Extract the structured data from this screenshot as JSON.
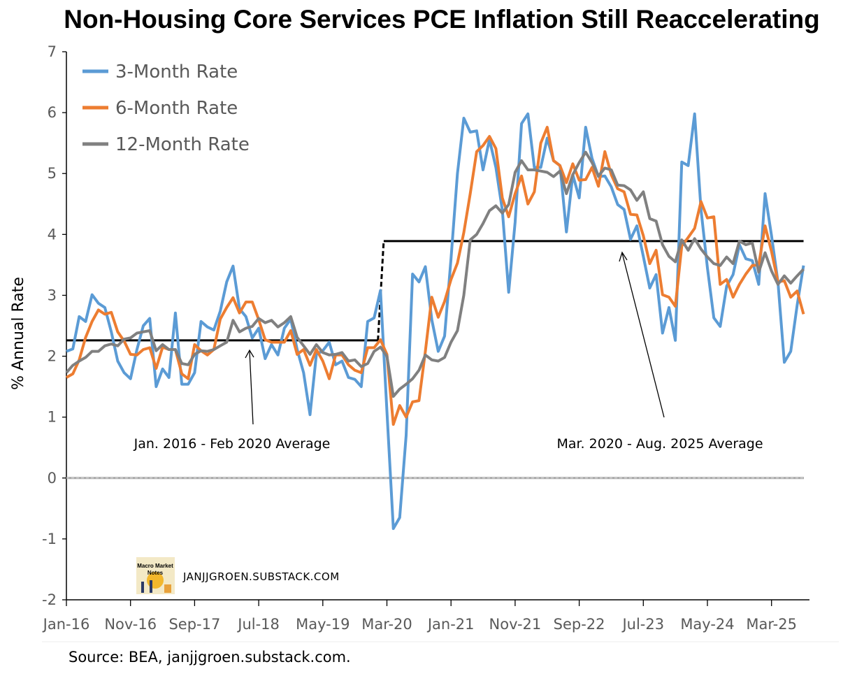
{
  "chart_data": {
    "type": "line",
    "title": "Non-Housing Core Services PCE Inflation Still Reaccelerating",
    "ylabel": "% Annual Rate",
    "xlabel": "",
    "ylim": [
      -2,
      7
    ],
    "yticks": [
      -2,
      -1,
      0,
      1,
      2,
      3,
      4,
      5,
      6,
      7
    ],
    "start_month": "Jan-16",
    "end_month": "Aug-25",
    "x_tick_labels": [
      "Jan-16",
      "Nov-16",
      "Sep-17",
      "Jul-18",
      "May-19",
      "Mar-20",
      "Jan-21",
      "Nov-21",
      "Sep-22",
      "Jul-23",
      "May-24",
      "Mar-25"
    ],
    "x_tick_step_months": 10,
    "grid": false,
    "legend_position": "top-left",
    "series": [
      {
        "name": "3-Month Rate",
        "color": "#5B9BD5",
        "values": [
          2.08,
          2.12,
          2.65,
          2.57,
          3.01,
          2.87,
          2.8,
          2.4,
          1.92,
          1.73,
          1.63,
          2.11,
          2.5,
          2.62,
          1.5,
          1.79,
          1.65,
          2.71,
          1.54,
          1.54,
          1.73,
          2.57,
          2.48,
          2.43,
          2.74,
          3.22,
          3.48,
          2.78,
          2.65,
          2.3,
          2.46,
          1.96,
          2.19,
          2.02,
          2.46,
          2.61,
          2.11,
          1.73,
          1.04,
          2.03,
          2.09,
          2.23,
          1.86,
          1.92,
          1.65,
          1.62,
          1.5,
          2.57,
          2.63,
          3.08,
          1.1,
          -0.83,
          -0.65,
          0.7,
          3.35,
          3.22,
          3.47,
          2.6,
          2.08,
          2.33,
          3.6,
          5.0,
          5.91,
          5.68,
          5.7,
          5.06,
          5.56,
          5.1,
          4.4,
          3.05,
          4.2,
          5.82,
          5.98,
          5.1,
          5.1,
          5.58,
          5.21,
          5.13,
          4.04,
          4.98,
          4.6,
          5.76,
          5.25,
          4.95,
          4.96,
          4.78,
          4.49,
          4.41,
          3.92,
          4.14,
          3.64,
          3.12,
          3.34,
          2.38,
          2.8,
          2.26,
          5.19,
          5.13,
          5.98,
          4.41,
          3.45,
          2.63,
          2.49,
          3.15,
          3.34,
          3.83,
          3.6,
          3.57,
          3.18,
          4.67,
          3.98,
          3.22,
          1.9,
          2.08,
          2.84,
          3.49
        ]
      },
      {
        "name": "6-Month Rate",
        "color": "#ED7D31",
        "values": [
          1.65,
          1.71,
          1.94,
          2.31,
          2.57,
          2.76,
          2.69,
          2.72,
          2.4,
          2.25,
          2.03,
          2.02,
          2.11,
          2.14,
          1.8,
          2.15,
          2.11,
          2.11,
          1.71,
          1.63,
          2.19,
          2.09,
          2.02,
          2.11,
          2.61,
          2.8,
          2.96,
          2.71,
          2.89,
          2.89,
          2.6,
          2.27,
          2.23,
          2.23,
          2.23,
          2.42,
          2.03,
          2.11,
          1.85,
          2.11,
          1.92,
          1.63,
          2.02,
          2.02,
          1.86,
          1.77,
          1.73,
          2.14,
          2.14,
          2.27,
          2.03,
          0.88,
          1.19,
          1.0,
          1.25,
          1.27,
          2.08,
          2.97,
          2.64,
          2.9,
          3.26,
          3.53,
          4.03,
          4.67,
          5.36,
          5.46,
          5.61,
          5.41,
          4.6,
          4.29,
          4.67,
          4.96,
          4.5,
          4.7,
          5.5,
          5.76,
          5.21,
          5.13,
          4.85,
          5.16,
          4.89,
          4.9,
          5.1,
          4.79,
          5.36,
          4.98,
          4.75,
          4.7,
          4.33,
          4.32,
          3.98,
          3.52,
          3.74,
          3.01,
          2.97,
          2.82,
          3.81,
          3.95,
          4.1,
          4.54,
          4.27,
          4.29,
          3.18,
          3.26,
          2.97,
          3.18,
          3.35,
          3.49,
          3.5,
          4.14,
          3.72,
          3.22,
          3.24,
          2.97,
          3.07,
          2.69
        ]
      },
      {
        "name": "12-Month Rate",
        "color": "#808080",
        "values": [
          1.73,
          1.85,
          1.92,
          1.98,
          2.08,
          2.08,
          2.17,
          2.2,
          2.17,
          2.28,
          2.3,
          2.38,
          2.4,
          2.42,
          2.09,
          2.19,
          2.11,
          2.11,
          1.88,
          1.86,
          2.03,
          2.09,
          2.08,
          2.11,
          2.17,
          2.23,
          2.59,
          2.4,
          2.46,
          2.49,
          2.62,
          2.55,
          2.59,
          2.48,
          2.55,
          2.65,
          2.31,
          2.17,
          2.03,
          2.19,
          2.06,
          2.02,
          2.03,
          2.06,
          1.92,
          1.94,
          1.83,
          1.88,
          2.08,
          2.15,
          2.0,
          1.34,
          1.46,
          1.54,
          1.63,
          1.77,
          2.02,
          1.94,
          1.92,
          1.98,
          2.23,
          2.42,
          3.0,
          3.91,
          4.0,
          4.18,
          4.39,
          4.47,
          4.35,
          4.49,
          5.02,
          5.21,
          5.06,
          5.06,
          5.04,
          5.02,
          4.95,
          5.04,
          4.67,
          4.98,
          5.18,
          5.35,
          5.18,
          4.96,
          5.09,
          5.06,
          4.81,
          4.8,
          4.73,
          4.56,
          4.7,
          4.26,
          4.22,
          3.83,
          3.64,
          3.55,
          3.91,
          3.74,
          3.93,
          3.76,
          3.63,
          3.52,
          3.49,
          3.63,
          3.52,
          3.89,
          3.83,
          3.86,
          3.38,
          3.7,
          3.4,
          3.18,
          3.32,
          3.2,
          3.32,
          3.43
        ]
      }
    ],
    "averages": [
      {
        "label": "Jan. 2016 - Feb 2020 Average",
        "value": 2.26,
        "from_month_index": 0,
        "to_month_index": 48.6
      },
      {
        "label": "Mar. 2020 - Aug. 2025 Average",
        "value": 3.89,
        "from_month_index": 49.5,
        "to_month_index": 115
      }
    ],
    "annotations": {
      "pre_label": "Jan. 2016 - Feb 2020 Average",
      "post_label": "Mar. 2020 - Aug. 2025 Average"
    }
  },
  "branding": {
    "logo_line1": "Macro Market",
    "logo_line2": "Notes",
    "site": "JANJJGROEN.SUBSTACK.COM"
  },
  "source": "Source: BEA, janjjgroen.substack.com."
}
